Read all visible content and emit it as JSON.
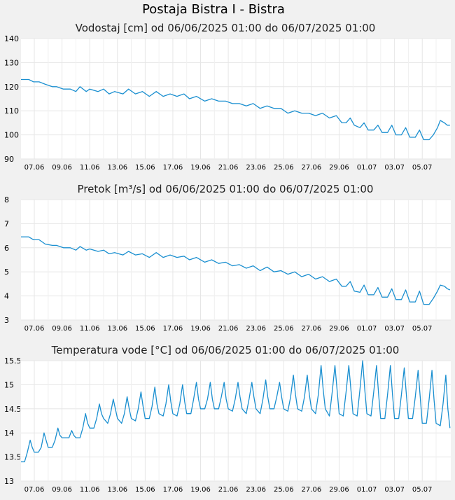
{
  "title": "Postaja Bistra I - Bistra",
  "colors": {
    "background": "#f1f1f1",
    "plot": "#ffffff",
    "grid": "#e6e6e6",
    "line": "#1a8fd0"
  },
  "x_ticks": [
    "07.06",
    "09.06",
    "11.06",
    "13.06",
    "15.06",
    "17.06",
    "19.06",
    "21.06",
    "23.06",
    "25.06",
    "27.06",
    "29.06",
    "01.07",
    "03.07",
    "05.07"
  ],
  "chart_data": [
    {
      "type": "line",
      "title": "Vodostaj [cm] od 06/06/2025 01:00 do 06/07/2025 01:00",
      "ylim": [
        90,
        140
      ],
      "yticks": [
        "90",
        "100",
        "110",
        "120",
        "130",
        "140"
      ],
      "x_start_day": 6.04,
      "series": [
        {
          "x": [
            6.04,
            6.6,
            6.95,
            7.35,
            7.8,
            8.3,
            8.6,
            9.1,
            9.6,
            10.0,
            10.3,
            10.75,
            11.0,
            11.6,
            12.0,
            12.4,
            12.8,
            13.4,
            13.8,
            14.3,
            14.8,
            15.3,
            15.8,
            16.3,
            16.8,
            17.3,
            17.8,
            18.2,
            18.7,
            19.3,
            19.8,
            20.3,
            20.8,
            21.3,
            21.8,
            22.3,
            22.8,
            23.3,
            23.8,
            24.3,
            24.8,
            25.3,
            25.8,
            26.3,
            26.8,
            27.3,
            27.8,
            28.3,
            28.8,
            29.2,
            29.5,
            29.8,
            30.1,
            30.5,
            30.8,
            31.1,
            31.5,
            31.8,
            32.1,
            32.5,
            32.8,
            33.1,
            33.5,
            33.8,
            34.1,
            34.5,
            34.8,
            35.1,
            35.5,
            35.8,
            36.1,
            36.3,
            36.6,
            36.8,
            37.0
          ],
          "values": [
            123,
            123,
            122,
            122,
            121,
            120,
            120,
            119,
            119,
            118,
            120,
            118,
            119,
            118,
            119,
            117,
            118,
            117,
            119,
            117,
            118,
            116,
            118,
            116,
            117,
            116,
            117,
            115,
            116,
            114,
            115,
            114,
            114,
            113,
            113,
            112,
            113,
            111,
            112,
            111,
            111,
            109,
            110,
            109,
            109,
            108,
            109,
            107,
            108,
            105,
            105,
            107,
            104,
            103,
            105,
            102,
            102,
            104,
            101,
            101,
            104,
            100,
            100,
            103,
            99,
            99,
            102,
            98,
            98,
            100,
            103,
            106,
            105,
            104,
            104
          ]
        }
      ]
    },
    {
      "type": "line",
      "title": "Pretok [m³/s] od 06/06/2025 01:00 do 06/07/2025 01:00",
      "ylim": [
        3,
        8
      ],
      "yticks": [
        "3",
        "4",
        "5",
        "6",
        "7",
        "8"
      ],
      "x_start_day": 6.04,
      "series": [
        {
          "x": [
            6.04,
            6.6,
            6.95,
            7.35,
            7.8,
            8.3,
            8.6,
            9.1,
            9.6,
            10.0,
            10.3,
            10.75,
            11.0,
            11.6,
            12.0,
            12.4,
            12.8,
            13.4,
            13.8,
            14.3,
            14.8,
            15.3,
            15.8,
            16.3,
            16.8,
            17.3,
            17.8,
            18.2,
            18.7,
            19.3,
            19.8,
            20.3,
            20.8,
            21.3,
            21.8,
            22.3,
            22.8,
            23.3,
            23.8,
            24.3,
            24.8,
            25.3,
            25.8,
            26.3,
            26.8,
            27.3,
            27.8,
            28.3,
            28.8,
            29.2,
            29.5,
            29.8,
            30.1,
            30.5,
            30.8,
            31.1,
            31.5,
            31.8,
            32.1,
            32.5,
            32.8,
            33.1,
            33.5,
            33.8,
            34.1,
            34.5,
            34.8,
            35.1,
            35.5,
            35.8,
            36.1,
            36.3,
            36.6,
            36.8,
            37.0
          ],
          "values": [
            6.45,
            6.45,
            6.33,
            6.33,
            6.15,
            6.1,
            6.1,
            6.0,
            6.0,
            5.9,
            6.05,
            5.9,
            5.95,
            5.85,
            5.9,
            5.75,
            5.8,
            5.7,
            5.85,
            5.7,
            5.75,
            5.6,
            5.8,
            5.6,
            5.7,
            5.6,
            5.65,
            5.5,
            5.6,
            5.4,
            5.5,
            5.35,
            5.4,
            5.25,
            5.3,
            5.15,
            5.25,
            5.05,
            5.2,
            5.0,
            5.05,
            4.9,
            5.0,
            4.8,
            4.9,
            4.7,
            4.8,
            4.6,
            4.7,
            4.4,
            4.4,
            4.6,
            4.2,
            4.15,
            4.45,
            4.05,
            4.05,
            4.35,
            3.95,
            3.95,
            4.3,
            3.85,
            3.85,
            4.25,
            3.75,
            3.75,
            4.2,
            3.65,
            3.65,
            3.9,
            4.2,
            4.45,
            4.4,
            4.3,
            4.25
          ]
        }
      ]
    },
    {
      "type": "line",
      "title": "Temperatura vode [°C] od 06/06/2025 01:00 do 06/07/2025 01:00",
      "ylim": [
        13,
        15.5
      ],
      "yticks": [
        "13",
        "13.5",
        "14",
        "14.5",
        "15",
        "15.5"
      ],
      "x_start_day": 6.04,
      "series": [
        {
          "x": [
            6.04,
            6.3,
            6.5,
            6.7,
            6.85,
            7.0,
            7.3,
            7.5,
            7.7,
            7.85,
            8.0,
            8.3,
            8.5,
            8.7,
            8.85,
            9.0,
            9.3,
            9.5,
            9.7,
            9.85,
            10.0,
            10.3,
            10.5,
            10.7,
            10.85,
            11.0,
            11.3,
            11.5,
            11.7,
            11.85,
            12.0,
            12.3,
            12.5,
            12.7,
            12.85,
            13.0,
            13.3,
            13.5,
            13.7,
            13.85,
            14.0,
            14.3,
            14.5,
            14.7,
            14.85,
            15.0,
            15.3,
            15.5,
            15.7,
            15.85,
            16.0,
            16.3,
            16.5,
            16.7,
            16.85,
            17.0,
            17.3,
            17.5,
            17.7,
            17.85,
            18.0,
            18.3,
            18.5,
            18.7,
            18.85,
            19.0,
            19.3,
            19.5,
            19.7,
            19.85,
            20.0,
            20.3,
            20.5,
            20.7,
            20.85,
            21.0,
            21.3,
            21.5,
            21.7,
            21.85,
            22.0,
            22.3,
            22.5,
            22.7,
            22.85,
            23.0,
            23.3,
            23.5,
            23.7,
            23.85,
            24.0,
            24.3,
            24.5,
            24.7,
            24.85,
            25.0,
            25.3,
            25.5,
            25.7,
            25.85,
            26.0,
            26.3,
            26.5,
            26.7,
            26.85,
            27.0,
            27.3,
            27.5,
            27.7,
            27.85,
            28.0,
            28.3,
            28.5,
            28.7,
            28.85,
            29.0,
            29.3,
            29.5,
            29.7,
            29.85,
            30.0,
            30.3,
            30.5,
            30.7,
            30.85,
            31.0,
            31.3,
            31.5,
            31.7,
            31.85,
            32.0,
            32.3,
            32.5,
            32.7,
            32.85,
            33.0,
            33.3,
            33.5,
            33.7,
            33.85,
            34.0,
            34.3,
            34.5,
            34.7,
            34.85,
            35.0,
            35.3,
            35.5,
            35.7,
            35.85,
            36.0,
            36.3,
            36.5,
            36.7,
            36.85,
            37.0
          ],
          "values": [
            13.4,
            13.4,
            13.6,
            13.85,
            13.7,
            13.6,
            13.6,
            13.7,
            14.0,
            13.85,
            13.7,
            13.7,
            13.85,
            14.1,
            13.95,
            13.9,
            13.9,
            13.9,
            14.05,
            13.95,
            13.9,
            13.9,
            14.1,
            14.4,
            14.2,
            14.1,
            14.1,
            14.3,
            14.6,
            14.4,
            14.3,
            14.2,
            14.4,
            14.7,
            14.5,
            14.3,
            14.2,
            14.4,
            14.75,
            14.5,
            14.3,
            14.25,
            14.5,
            14.85,
            14.55,
            14.3,
            14.3,
            14.55,
            14.95,
            14.6,
            14.4,
            14.35,
            14.6,
            15.0,
            14.65,
            14.4,
            14.35,
            14.6,
            15.0,
            14.65,
            14.4,
            14.4,
            14.7,
            15.05,
            14.7,
            14.5,
            14.5,
            14.7,
            15.05,
            14.7,
            14.5,
            14.5,
            14.75,
            15.05,
            14.7,
            14.5,
            14.45,
            14.7,
            15.05,
            14.75,
            14.5,
            14.4,
            14.7,
            15.05,
            14.75,
            14.5,
            14.4,
            14.7,
            15.1,
            14.75,
            14.5,
            14.5,
            14.75,
            15.05,
            14.75,
            14.5,
            14.45,
            14.75,
            15.2,
            14.8,
            14.5,
            14.45,
            14.75,
            15.2,
            14.8,
            14.5,
            14.4,
            14.8,
            15.4,
            14.9,
            14.5,
            14.35,
            14.85,
            15.4,
            14.9,
            14.4,
            14.35,
            14.85,
            15.4,
            14.9,
            14.4,
            14.35,
            14.9,
            15.5,
            14.9,
            14.4,
            14.35,
            14.85,
            15.4,
            14.8,
            14.3,
            14.3,
            14.8,
            15.4,
            14.8,
            14.3,
            14.3,
            14.8,
            15.35,
            14.8,
            14.3,
            14.3,
            14.75,
            15.3,
            14.75,
            14.2,
            14.2,
            14.7,
            15.3,
            14.7,
            14.2,
            14.15,
            14.6,
            15.2,
            14.5,
            14.1
          ]
        }
      ]
    }
  ]
}
